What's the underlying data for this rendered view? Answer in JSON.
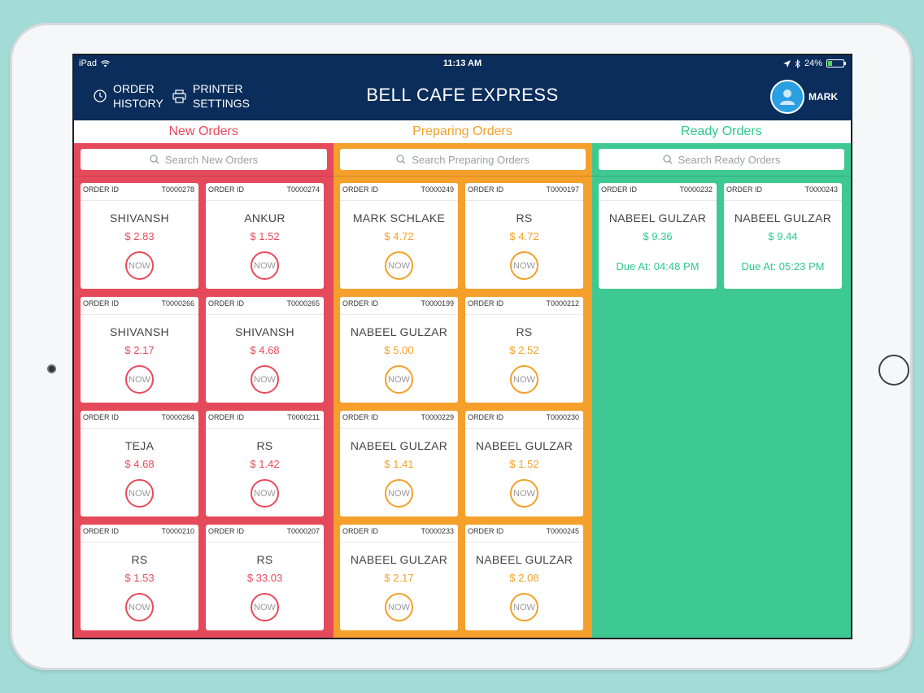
{
  "status_bar": {
    "device": "iPad",
    "time": "11:13 AM",
    "battery": "24%"
  },
  "header": {
    "order_history_line1": "ORDER",
    "order_history_line2": "HISTORY",
    "printer_line1": "PRINTER",
    "printer_line2": "SETTINGS",
    "title": "BELL CAFE EXPRESS",
    "user": "MARK"
  },
  "colors": {
    "new": "#e54a5b",
    "preparing": "#f5a02a",
    "ready": "#3ec993",
    "header": "#0b2d5b"
  },
  "columns": {
    "new": {
      "title": "New Orders",
      "search_placeholder": "Search New Orders",
      "orders": [
        {
          "label": "ORDER ID",
          "id": "T0000278",
          "name": "SHIVANSH",
          "price": "$ 2.83",
          "action": "NOW"
        },
        {
          "label": "ORDER ID",
          "id": "T0000274",
          "name": "ANKUR",
          "price": "$ 1.52",
          "action": "NOW"
        },
        {
          "label": "ORDER ID",
          "id": "T0000266",
          "name": "SHIVANSH",
          "price": "$ 2.17",
          "action": "NOW"
        },
        {
          "label": "ORDER ID",
          "id": "T0000265",
          "name": "SHIVANSH",
          "price": "$ 4.68",
          "action": "NOW"
        },
        {
          "label": "ORDER ID",
          "id": "T0000264",
          "name": "TEJA",
          "price": "$ 4.68",
          "action": "NOW"
        },
        {
          "label": "ORDER ID",
          "id": "T0000211",
          "name": "RS",
          "price": "$ 1.42",
          "action": "NOW"
        },
        {
          "label": "ORDER ID",
          "id": "T0000210",
          "name": "RS",
          "price": "$ 1.53",
          "action": "NOW"
        },
        {
          "label": "ORDER ID",
          "id": "T0000207",
          "name": "RS",
          "price": "$ 33.03",
          "action": "NOW"
        }
      ]
    },
    "preparing": {
      "title": "Preparing Orders",
      "search_placeholder": "Search Preparing Orders",
      "orders": [
        {
          "label": "ORDER ID",
          "id": "T0000249",
          "name": "MARK SCHLAKE",
          "price": "$ 4.72",
          "action": "NOW"
        },
        {
          "label": "ORDER ID",
          "id": "T0000197",
          "name": "RS",
          "price": "$ 4.72",
          "action": "NOW"
        },
        {
          "label": "ORDER ID",
          "id": "T0000199",
          "name": "NABEEL GULZAR",
          "price": "$ 5.00",
          "action": "NOW"
        },
        {
          "label": "ORDER ID",
          "id": "T0000212",
          "name": "RS",
          "price": "$ 2.52",
          "action": "NOW"
        },
        {
          "label": "ORDER ID",
          "id": "T0000229",
          "name": "NABEEL GULZAR",
          "price": "$ 1.41",
          "action": "NOW"
        },
        {
          "label": "ORDER ID",
          "id": "T0000230",
          "name": "NABEEL GULZAR",
          "price": "$ 1.52",
          "action": "NOW"
        },
        {
          "label": "ORDER ID",
          "id": "T0000233",
          "name": "NABEEL GULZAR",
          "price": "$ 2.17",
          "action": "NOW"
        },
        {
          "label": "ORDER ID",
          "id": "T0000245",
          "name": "NABEEL GULZAR",
          "price": "$ 2.08",
          "action": "NOW"
        }
      ]
    },
    "ready": {
      "title": "Ready Orders",
      "search_placeholder": "Search Ready Orders",
      "orders": [
        {
          "label": "ORDER ID",
          "id": "T0000232",
          "name": "NABEEL GULZAR",
          "price": "$ 9.36",
          "due": "Due At: 04:48 PM"
        },
        {
          "label": "ORDER ID",
          "id": "T0000243",
          "name": "NABEEL GULZAR",
          "price": "$ 9.44",
          "due": "Due At: 05:23 PM"
        }
      ]
    }
  }
}
